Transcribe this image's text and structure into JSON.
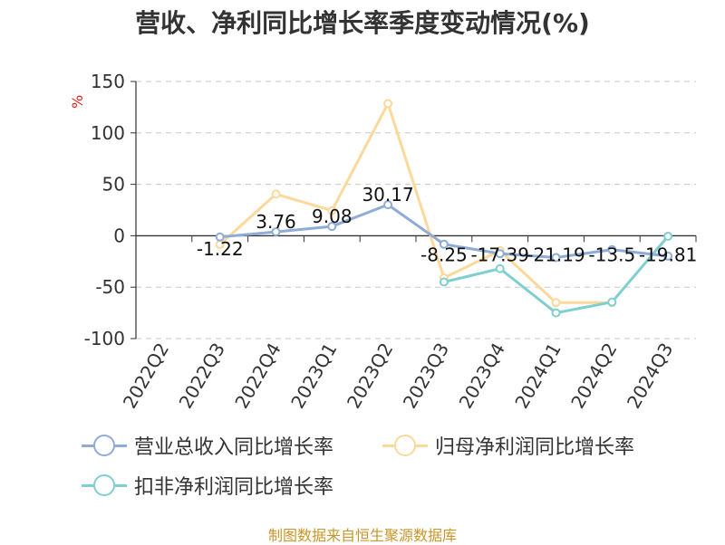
{
  "chart_data": {
    "type": "line",
    "title": "营收、净利同比增长率季度变动情况(%)",
    "ylabel": "%",
    "xlabel": "",
    "ylim": [
      -100,
      150
    ],
    "yticks": [
      150,
      100,
      50,
      0,
      -50,
      -100
    ],
    "categories": [
      "2022Q2",
      "2022Q3",
      "2022Q4",
      "2023Q1",
      "2023Q2",
      "2023Q3",
      "2023Q4",
      "2024Q1",
      "2024Q2",
      "2024Q3"
    ],
    "grid": true,
    "legend_position": "bottom",
    "series": [
      {
        "name": "营业总收入同比增长率",
        "color": "#8eacd6",
        "values": [
          null,
          -1.22,
          3.76,
          9.08,
          30.17,
          -8.25,
          -17.39,
          -21.19,
          -13.5,
          -19.81
        ],
        "labels": [
          null,
          "-1.22",
          "3.76",
          "9.08",
          "30.17",
          "-8.25",
          "-17.39",
          "-21.19",
          "-13.5",
          "-19.81"
        ]
      },
      {
        "name": "归母净利润同比增长率",
        "color": "#fcd99a",
        "values": [
          null,
          -8.5,
          40.5,
          24.5,
          128.5,
          -41.0,
          -14.5,
          -65.0,
          -65.0,
          null
        ]
      },
      {
        "name": "扣非净利润同比增长率",
        "color": "#7fcfd1",
        "values": [
          null,
          null,
          null,
          null,
          null,
          -45.0,
          -32.0,
          -75.0,
          -64.5,
          -0.5
        ]
      }
    ]
  },
  "footer": "制图数据来自恒生聚源数据库"
}
